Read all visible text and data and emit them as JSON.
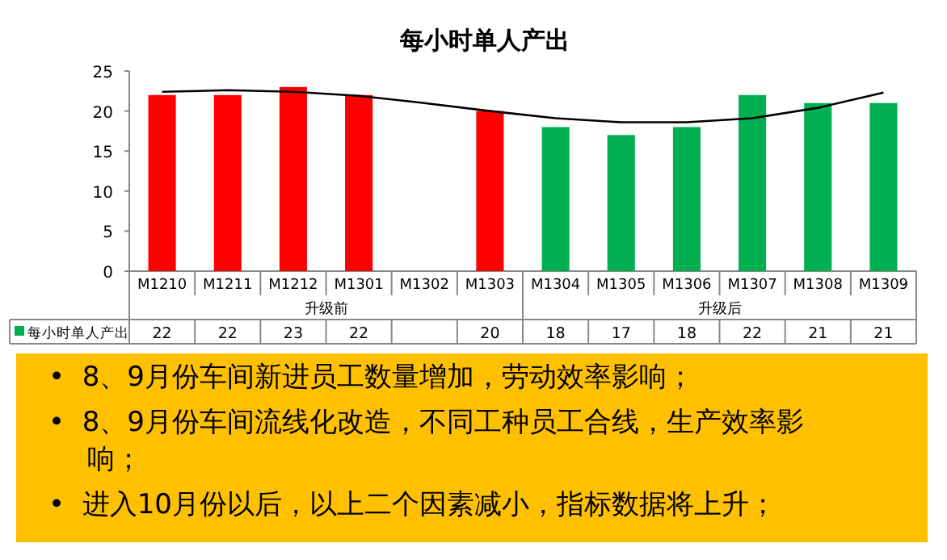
{
  "chart_data": {
    "type": "bar",
    "title": "每小时单人产出",
    "categories": [
      "M1210",
      "M1211",
      "M1212",
      "M1301",
      "M1302",
      "M1303",
      "M1304",
      "M1305",
      "M1306",
      "M1307",
      "M1308",
      "M1309"
    ],
    "series": [
      {
        "name": "每小时单人产出",
        "type": "bar",
        "color": "#00b050",
        "colors": [
          "#ff0000",
          "#ff0000",
          "#ff0000",
          "#ff0000",
          "#ff0000",
          "#ff0000",
          "#00b050",
          "#00b050",
          "#00b050",
          "#00b050",
          "#00b050",
          "#00b050"
        ],
        "values": [
          22,
          22,
          23,
          22,
          null,
          20,
          18,
          17,
          18,
          22,
          21,
          21
        ],
        "value_labels": [
          "22",
          "22",
          "23",
          "22",
          null,
          "20",
          "18",
          "17",
          "18",
          "22",
          "21",
          "21"
        ]
      },
      {
        "type": "line",
        "color": "#000000",
        "values": [
          22.4,
          22.6,
          22.4,
          21.9,
          21.0,
          20.0,
          19.1,
          18.6,
          18.6,
          19.1,
          20.4,
          22.3
        ]
      }
    ],
    "ylim": [
      0,
      25
    ],
    "yticks": [
      0,
      5,
      10,
      15,
      20,
      25
    ],
    "legend": "bottom",
    "annotations": [
      "升级前",
      "升级后",
      "• 8、9月份车间新进员工数量增加，劳动效率影响；",
      "• 8、9月份车间流线化改造，不同工种员工合线，生产效率影响；",
      "• 进入10月份以后，以上二个因素减小，指标数据将上升；"
    ]
  }
}
